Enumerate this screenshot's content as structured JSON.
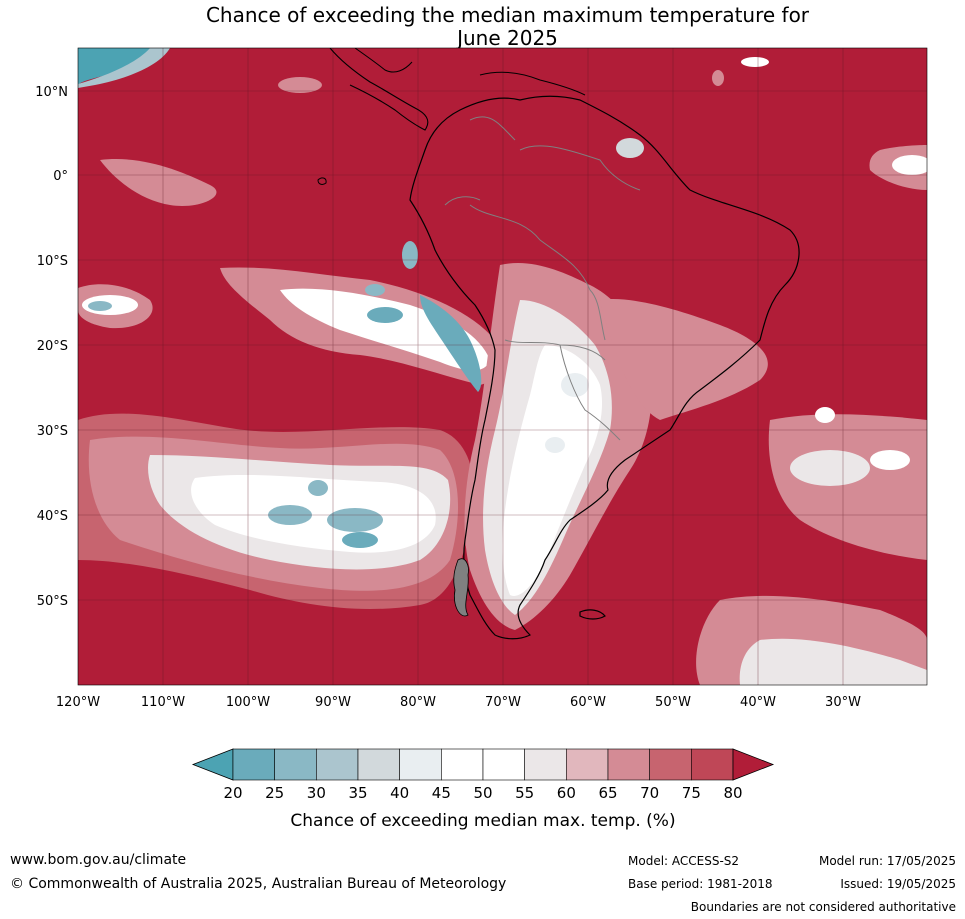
{
  "title": {
    "line1": "Chance of exceeding the median maximum temperature for",
    "line2": "June 2025"
  },
  "map": {
    "lat_labels": [
      "10°N",
      "0°",
      "10°S",
      "20°S",
      "30°S",
      "40°S",
      "50°S"
    ],
    "lon_labels": [
      "120°W",
      "110°W",
      "100°W",
      "90°W",
      "80°W",
      "70°W",
      "60°W",
      "50°W",
      "40°W",
      "30°W"
    ],
    "extent": {
      "lon": [
        -120,
        -20
      ],
      "lat": [
        -60,
        15
      ]
    },
    "dominant_category": "80+"
  },
  "colorbar": {
    "ticks": [
      "20",
      "25",
      "30",
      "35",
      "40",
      "45",
      "50",
      "55",
      "60",
      "65",
      "70",
      "75",
      "80"
    ],
    "colors": [
      "#4ca3b3",
      "#6aabbb",
      "#8ab8c5",
      "#abc5ce",
      "#d2d9dc",
      "#e9eef1",
      "#ffffff",
      "#ffffff",
      "#ebe7e8",
      "#e1b7bd",
      "#d48b95",
      "#c7646f",
      "#bf4757",
      "#b11d38"
    ],
    "label": "Chance of exceeding median max. temp. (%)"
  },
  "footer": {
    "website": "www.bom.gov.au/climate",
    "copyright": "© Commonwealth of Australia 2025, Australian Bureau of Meteorology",
    "model": "Model: ACCESS-S2",
    "base_period": "Base period: 1981-2018",
    "model_run": "Model run: 17/05/2025",
    "issued": "Issued: 19/05/2025",
    "disclaimer": "Boundaries are not considered authoritative"
  }
}
